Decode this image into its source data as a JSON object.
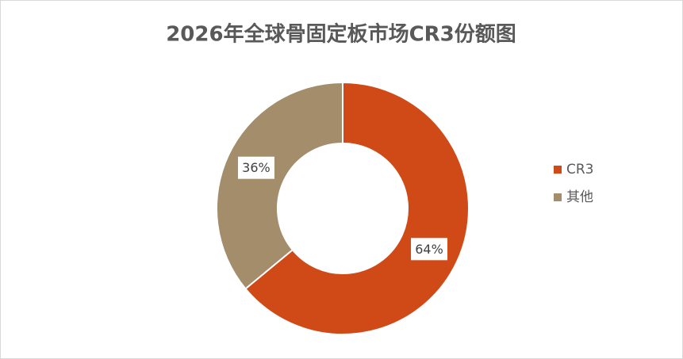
{
  "chart_data": {
    "type": "donut",
    "title": "2026年全球骨固定板市场CR3份额图",
    "categories": [
      "CR3",
      "其他"
    ],
    "values": [
      64,
      36
    ],
    "value_labels": [
      "64%",
      "36%"
    ],
    "colors": [
      "#d04a18",
      "#a38d6b"
    ],
    "legend": "right"
  }
}
